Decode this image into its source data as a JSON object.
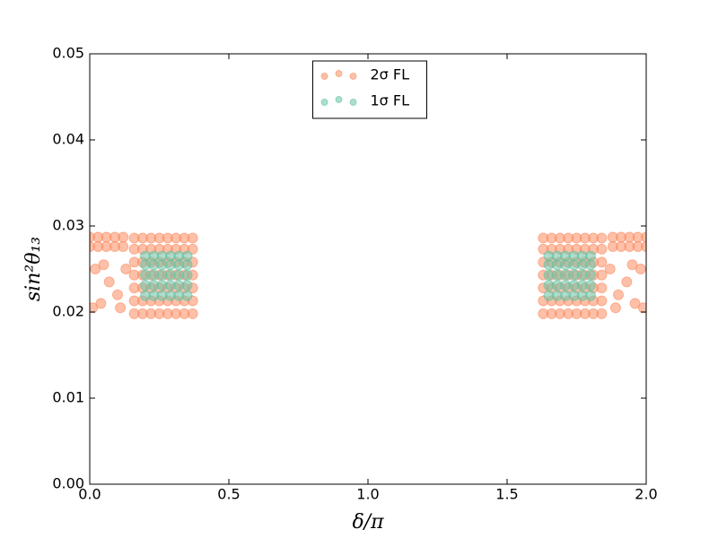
{
  "chart_data": {
    "type": "scatter",
    "xlabel": "δ/π",
    "ylabel": "sin²θ₁₃",
    "xlim": [
      0,
      2
    ],
    "ylim": [
      0,
      0.05
    ],
    "xticks": [
      {
        "value": 0,
        "label": "0.0"
      },
      {
        "value": 0.5,
        "label": "0.5"
      },
      {
        "value": 1,
        "label": "1.0"
      },
      {
        "value": 1.5,
        "label": "1.5"
      },
      {
        "value": 2,
        "label": "2.0"
      }
    ],
    "yticks": [
      {
        "value": 0,
        "label": "0.00"
      },
      {
        "value": 0.01,
        "label": "0.01"
      },
      {
        "value": 0.02,
        "label": "0.02"
      },
      {
        "value": 0.03,
        "label": "0.03"
      },
      {
        "value": 0.04,
        "label": "0.04"
      },
      {
        "value": 0.05,
        "label": "0.05"
      }
    ],
    "legend": "upper center",
    "series": [
      {
        "name": "2σ FL",
        "color": "#fc8d62",
        "x": [
          0.16,
          0.19,
          0.22,
          0.25,
          0.28,
          0.31,
          0.34,
          0.37,
          0.16,
          0.19,
          0.22,
          0.25,
          0.28,
          0.31,
          0.34,
          0.37,
          0.16,
          0.19,
          0.22,
          0.25,
          0.28,
          0.31,
          0.34,
          0.37,
          0.16,
          0.19,
          0.22,
          0.25,
          0.28,
          0.31,
          0.34,
          0.37,
          0.16,
          0.19,
          0.22,
          0.25,
          0.28,
          0.31,
          0.34,
          0.37,
          0.16,
          0.19,
          0.22,
          0.25,
          0.28,
          0.31,
          0.34,
          0.37,
          0.16,
          0.19,
          0.22,
          0.25,
          0.28,
          0.31,
          0.34,
          0.37,
          0,
          0.03,
          0.06,
          0.09,
          0.12,
          0,
          0.03,
          0.06,
          0.09,
          0.12,
          0.01,
          0.04,
          0.07,
          0.1,
          0.13,
          0.05,
          0.02,
          0.11,
          1.63,
          1.66,
          1.69,
          1.72,
          1.75,
          1.78,
          1.81,
          1.84,
          1.63,
          1.66,
          1.69,
          1.72,
          1.75,
          1.78,
          1.81,
          1.84,
          1.63,
          1.66,
          1.69,
          1.72,
          1.75,
          1.78,
          1.81,
          1.84,
          1.63,
          1.66,
          1.69,
          1.72,
          1.75,
          1.78,
          1.81,
          1.84,
          1.63,
          1.66,
          1.69,
          1.72,
          1.75,
          1.78,
          1.81,
          1.84,
          1.63,
          1.66,
          1.69,
          1.72,
          1.75,
          1.78,
          1.81,
          1.84,
          1.63,
          1.66,
          1.69,
          1.72,
          1.75,
          1.78,
          1.81,
          1.84,
          2,
          1.97,
          1.94,
          1.91,
          1.88,
          2,
          1.97,
          1.94,
          1.91,
          1.88,
          1.99,
          1.96,
          1.93,
          1.9,
          1.87,
          1.95,
          1.98,
          1.89
        ],
        "values": [
          0.0198,
          0.0198,
          0.0198,
          0.0198,
          0.0198,
          0.0198,
          0.0198,
          0.0198,
          0.0213,
          0.0213,
          0.0213,
          0.0213,
          0.0213,
          0.0213,
          0.0213,
          0.0213,
          0.0228,
          0.0228,
          0.0228,
          0.0228,
          0.0228,
          0.0228,
          0.0228,
          0.0228,
          0.0243,
          0.0243,
          0.0243,
          0.0243,
          0.0243,
          0.0243,
          0.0243,
          0.0243,
          0.0258,
          0.0258,
          0.0258,
          0.0258,
          0.0258,
          0.0258,
          0.0258,
          0.0258,
          0.0273,
          0.0273,
          0.0273,
          0.0273,
          0.0273,
          0.0273,
          0.0273,
          0.0273,
          0.0286,
          0.0286,
          0.0286,
          0.0286,
          0.0286,
          0.0286,
          0.0286,
          0.0286,
          0.0276,
          0.0276,
          0.0276,
          0.0276,
          0.0276,
          0.0287,
          0.0287,
          0.0287,
          0.0287,
          0.0287,
          0.0205,
          0.021,
          0.0235,
          0.022,
          0.025,
          0.0255,
          0.025,
          0.0205,
          0.0198,
          0.0198,
          0.0198,
          0.0198,
          0.0198,
          0.0198,
          0.0198,
          0.0198,
          0.0213,
          0.0213,
          0.0213,
          0.0213,
          0.0213,
          0.0213,
          0.0213,
          0.0213,
          0.0228,
          0.0228,
          0.0228,
          0.0228,
          0.0228,
          0.0228,
          0.0228,
          0.0228,
          0.0243,
          0.0243,
          0.0243,
          0.0243,
          0.0243,
          0.0243,
          0.0243,
          0.0243,
          0.0258,
          0.0258,
          0.0258,
          0.0258,
          0.0258,
          0.0258,
          0.0258,
          0.0258,
          0.0273,
          0.0273,
          0.0273,
          0.0273,
          0.0273,
          0.0273,
          0.0273,
          0.0273,
          0.0286,
          0.0286,
          0.0286,
          0.0286,
          0.0286,
          0.0286,
          0.0286,
          0.0286,
          0.0276,
          0.0276,
          0.0276,
          0.0276,
          0.0276,
          0.0287,
          0.0287,
          0.0287,
          0.0287,
          0.0287,
          0.0205,
          0.021,
          0.0235,
          0.022,
          0.025,
          0.0255,
          0.025,
          0.0205
        ]
      },
      {
        "name": "1σ FL",
        "color": "#66c2a5",
        "x": [
          0.2,
          0.23,
          0.26,
          0.29,
          0.32,
          0.35,
          0.2,
          0.23,
          0.26,
          0.29,
          0.32,
          0.35,
          0.2,
          0.23,
          0.26,
          0.29,
          0.32,
          0.35,
          0.2,
          0.23,
          0.26,
          0.29,
          0.32,
          0.35,
          0.2,
          0.23,
          0.26,
          0.29,
          0.32,
          0.35,
          1.65,
          1.68,
          1.71,
          1.74,
          1.77,
          1.8,
          1.65,
          1.68,
          1.71,
          1.74,
          1.77,
          1.8,
          1.65,
          1.68,
          1.71,
          1.74,
          1.77,
          1.8,
          1.65,
          1.68,
          1.71,
          1.74,
          1.77,
          1.8,
          1.65,
          1.68,
          1.71,
          1.74,
          1.77,
          1.8
        ],
        "values": [
          0.0219,
          0.0219,
          0.0219,
          0.0219,
          0.0219,
          0.0219,
          0.0231,
          0.0231,
          0.0231,
          0.0231,
          0.0231,
          0.0231,
          0.0243,
          0.0243,
          0.0243,
          0.0243,
          0.0243,
          0.0243,
          0.0255,
          0.0255,
          0.0255,
          0.0255,
          0.0255,
          0.0255,
          0.0265,
          0.0265,
          0.0265,
          0.0265,
          0.0265,
          0.0265,
          0.0219,
          0.0219,
          0.0219,
          0.0219,
          0.0219,
          0.0219,
          0.0231,
          0.0231,
          0.0231,
          0.0231,
          0.0231,
          0.0231,
          0.0243,
          0.0243,
          0.0243,
          0.0243,
          0.0243,
          0.0243,
          0.0255,
          0.0255,
          0.0255,
          0.0255,
          0.0255,
          0.0255,
          0.0265,
          0.0265,
          0.0265,
          0.0265,
          0.0265,
          0.0265
        ]
      }
    ]
  }
}
